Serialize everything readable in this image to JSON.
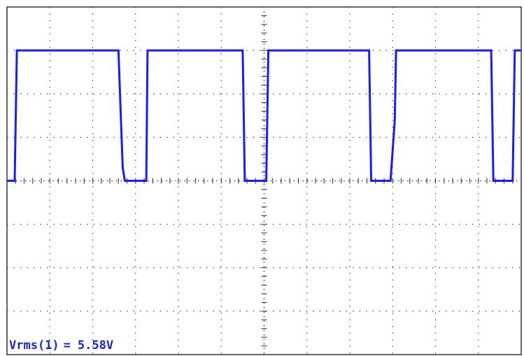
{
  "chart_data": {
    "type": "line",
    "title": "",
    "xlabel": "",
    "ylabel": "",
    "grid": true,
    "xlim": [
      0,
      12
    ],
    "ylim": [
      -4,
      4
    ],
    "series": [
      {
        "color": "#1a1aff",
        "points": [
          [
            0.0,
            0.0
          ],
          [
            0.18,
            0.0
          ],
          [
            0.23,
            3.0
          ],
          [
            2.6,
            3.0
          ],
          [
            2.7,
            0.3
          ],
          [
            2.75,
            0.0
          ],
          [
            3.25,
            0.0
          ],
          [
            3.28,
            3.0
          ],
          [
            5.5,
            3.0
          ],
          [
            5.55,
            0.0
          ],
          [
            6.05,
            0.0
          ],
          [
            6.1,
            3.0
          ],
          [
            8.45,
            3.0
          ],
          [
            8.5,
            0.0
          ],
          [
            8.95,
            0.0
          ],
          [
            9.05,
            1.4
          ],
          [
            9.08,
            3.0
          ],
          [
            11.3,
            3.0
          ],
          [
            11.35,
            0.0
          ],
          [
            11.8,
            0.0
          ],
          [
            11.85,
            3.0
          ],
          [
            12.0,
            3.0
          ]
        ]
      }
    ]
  },
  "measurement": {
    "label": "Vrms(1)",
    "equals": "=",
    "value": "5.58V"
  },
  "colors": {
    "trace": "#1a1aff",
    "grid": "#4a4a4a",
    "frame": "#333333",
    "text": "#1a24d8"
  }
}
